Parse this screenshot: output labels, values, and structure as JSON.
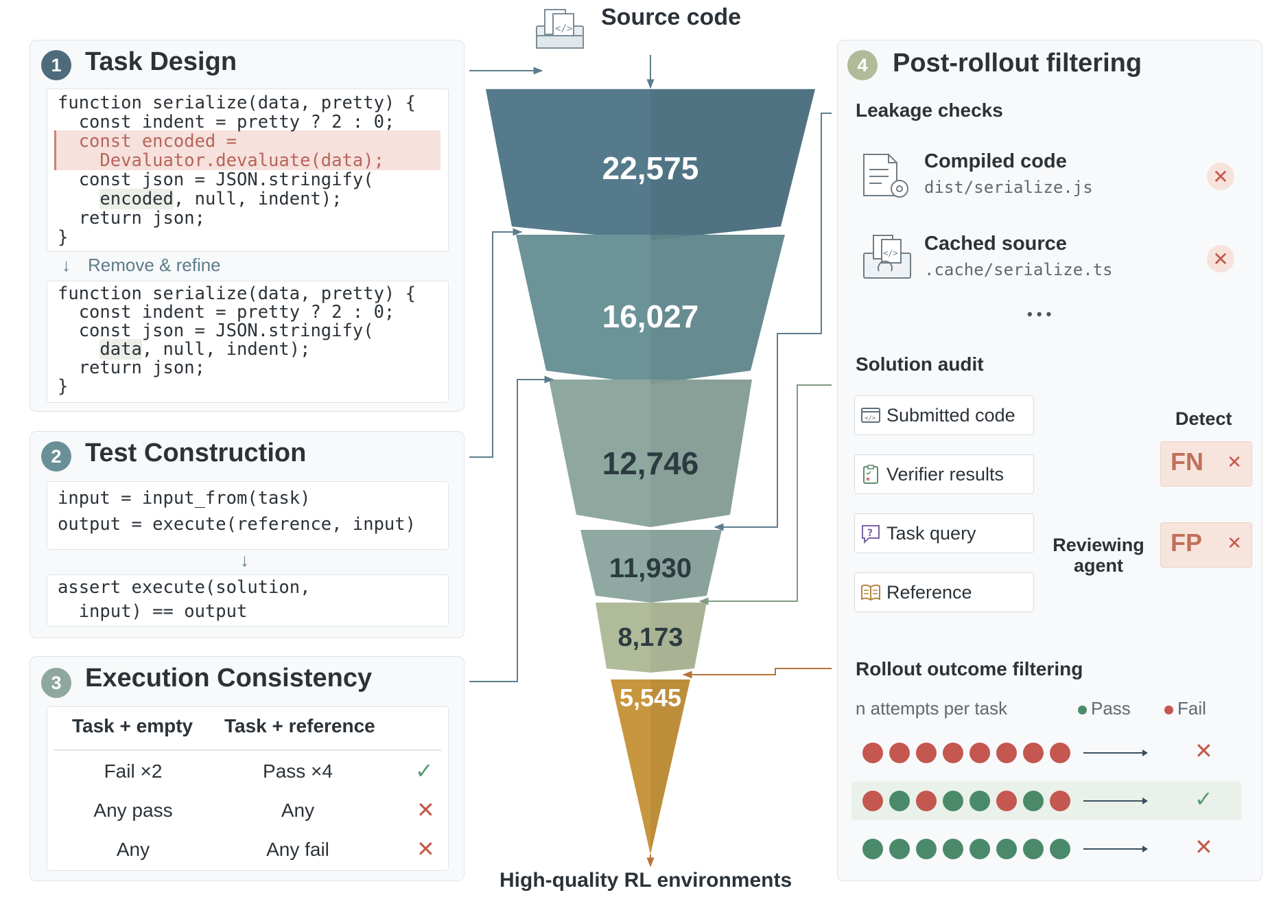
{
  "header": {
    "source_label": "Source code",
    "bottom_label": "High-quality RL environments"
  },
  "funnel": {
    "stages": [
      {
        "value": "22,575",
        "color": "#557a8b"
      },
      {
        "value": "16,027",
        "color": "#6c9398"
      },
      {
        "value": "12,746",
        "color": "#8ea79f"
      },
      {
        "value": "11,930",
        "color": "#8fa9a2"
      },
      {
        "value": "8,173",
        "color": "#b0bb9a"
      },
      {
        "value": "5,545",
        "color": "#c8963e"
      }
    ]
  },
  "task_design": {
    "number": "1",
    "title": "Task Design",
    "before_code": {
      "l1": "function serialize(data, pretty) {",
      "l2": "  const indent = pretty ? 2 : 0;",
      "l3": "  const encoded =",
      "l4": "    Devaluator.devaluate(data);",
      "l5a": "  const json = JSON.stringify(",
      "l6a": "    ",
      "l6b": "encoded",
      "l6c": ", null, indent);",
      "l7": "  return json;",
      "l8": "}"
    },
    "refine_label": "Remove & refine",
    "after_code": {
      "l1": "function serialize(data, pretty) {",
      "l2": "  const indent = pretty ? 2 : 0;",
      "l3": "  const json = JSON.stringify(",
      "l4a": "    ",
      "l4b": "data",
      "l4c": ", null, indent);",
      "l5": "  return json;",
      "l6": "}"
    }
  },
  "test_construction": {
    "number": "2",
    "title": "Test Construction",
    "code1": {
      "l1": "input = input_from(task)",
      "l2": "output = execute(reference, input)"
    },
    "code2": {
      "l1": "assert execute(solution,",
      "l2": "  input) == output"
    }
  },
  "execution_consistency": {
    "number": "3",
    "title": "Execution Consistency",
    "headers": [
      "Task + empty",
      "Task + reference"
    ],
    "rows": [
      {
        "empty": "Fail ×2",
        "reference": "Pass ×4",
        "result": "✓"
      },
      {
        "empty": "Any pass",
        "reference": "Any",
        "result": "✕"
      },
      {
        "empty": "Any",
        "reference": "Any fail",
        "result": "✕"
      }
    ]
  },
  "post_rollout": {
    "number": "4",
    "title": "Post-rollout filtering",
    "leakage": {
      "title": "Leakage checks",
      "items": [
        {
          "name": "Compiled code",
          "path": "dist/serialize.js",
          "mark": "✕"
        },
        {
          "name": "Cached source",
          "path": ".cache/serialize.ts",
          "mark": "✕"
        }
      ],
      "more": "• • •"
    },
    "audit": {
      "title": "Solution audit",
      "inputs": [
        "Submitted code",
        "Verifier results",
        "Task query",
        "Reference"
      ],
      "agent_label_1": "Reviewing",
      "agent_label_2": "agent",
      "detect_title": "Detect",
      "detections": [
        {
          "code": "FN",
          "mark": "✕"
        },
        {
          "code": "FP",
          "mark": "✕"
        }
      ]
    },
    "rollout": {
      "title": "Rollout outcome filtering",
      "attempts_label": "n attempts per task",
      "legend_pass": "Pass",
      "legend_fail": "Fail",
      "pass_color": "#4a8a6a",
      "fail_color": "#c4574f",
      "rows": [
        {
          "outcomes": [
            "fail",
            "fail",
            "fail",
            "fail",
            "fail",
            "fail",
            "fail",
            "fail"
          ],
          "result": "✕",
          "keep": false
        },
        {
          "outcomes": [
            "fail",
            "pass",
            "fail",
            "pass",
            "pass",
            "fail",
            "pass",
            "fail"
          ],
          "result": "✓",
          "keep": true
        },
        {
          "outcomes": [
            "pass",
            "pass",
            "pass",
            "pass",
            "pass",
            "pass",
            "pass",
            "pass"
          ],
          "result": "✕",
          "keep": false
        }
      ]
    }
  }
}
